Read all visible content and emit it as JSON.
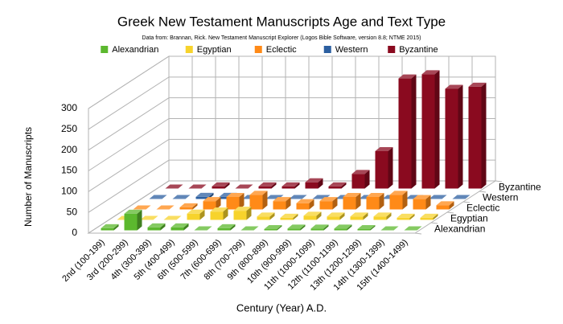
{
  "chart_data": {
    "type": "bar3d",
    "title": "Greek New Testament Manuscripts Age and Text Type",
    "subtitle": "Data from: Brannan, Rick. New Testament Manuscript Explorer (Logos Bible Software, version 8.8; NTME 2015)",
    "y_axis_label": "Number of Manuscripts",
    "x_axis_label": "Century (Year) A.D.",
    "categories": [
      "2nd (100-199)",
      "3rd (200-299)",
      "4th (300-399)",
      "5th (400-499)",
      "6th (500-599)",
      "7th (600-699)",
      "8th (700-799)",
      "9th (800-899)",
      "10th (900-999)",
      "11th (1000-1099)",
      "12th (1100-1199)",
      "13th (1200-1299)",
      "14th (1300-1399)",
      "15th (1400-1499)"
    ],
    "series": [
      {
        "name": "Alexandrian",
        "color": "#5cb82e",
        "values": [
          5,
          40,
          7,
          7,
          0,
          5,
          0,
          3,
          4,
          4,
          4,
          3,
          0,
          0
        ]
      },
      {
        "name": "Egyptian",
        "color": "#f7d32c",
        "values": [
          0,
          0,
          0,
          15,
          20,
          22,
          8,
          5,
          10,
          8,
          8,
          8,
          5,
          5
        ]
      },
      {
        "name": "Eclectic",
        "color": "#ff8a17",
        "values": [
          0,
          0,
          5,
          20,
          30,
          35,
          20,
          15,
          20,
          30,
          30,
          35,
          25,
          10
        ]
      },
      {
        "name": "Western",
        "color": "#2c5fa0",
        "values": [
          0,
          0,
          5,
          5,
          0,
          0,
          0,
          0,
          0,
          0,
          0,
          0,
          0,
          0
        ]
      },
      {
        "name": "Byzantine",
        "color": "#8a0a1f",
        "values": [
          0,
          0,
          5,
          0,
          5,
          5,
          15,
          5,
          35,
          90,
          265,
          275,
          240,
          245
        ]
      }
    ],
    "ylim": [
      0,
      300
    ],
    "yticks": [
      0,
      50,
      100,
      150,
      200,
      250,
      300
    ],
    "grid": true,
    "legend": "top"
  }
}
